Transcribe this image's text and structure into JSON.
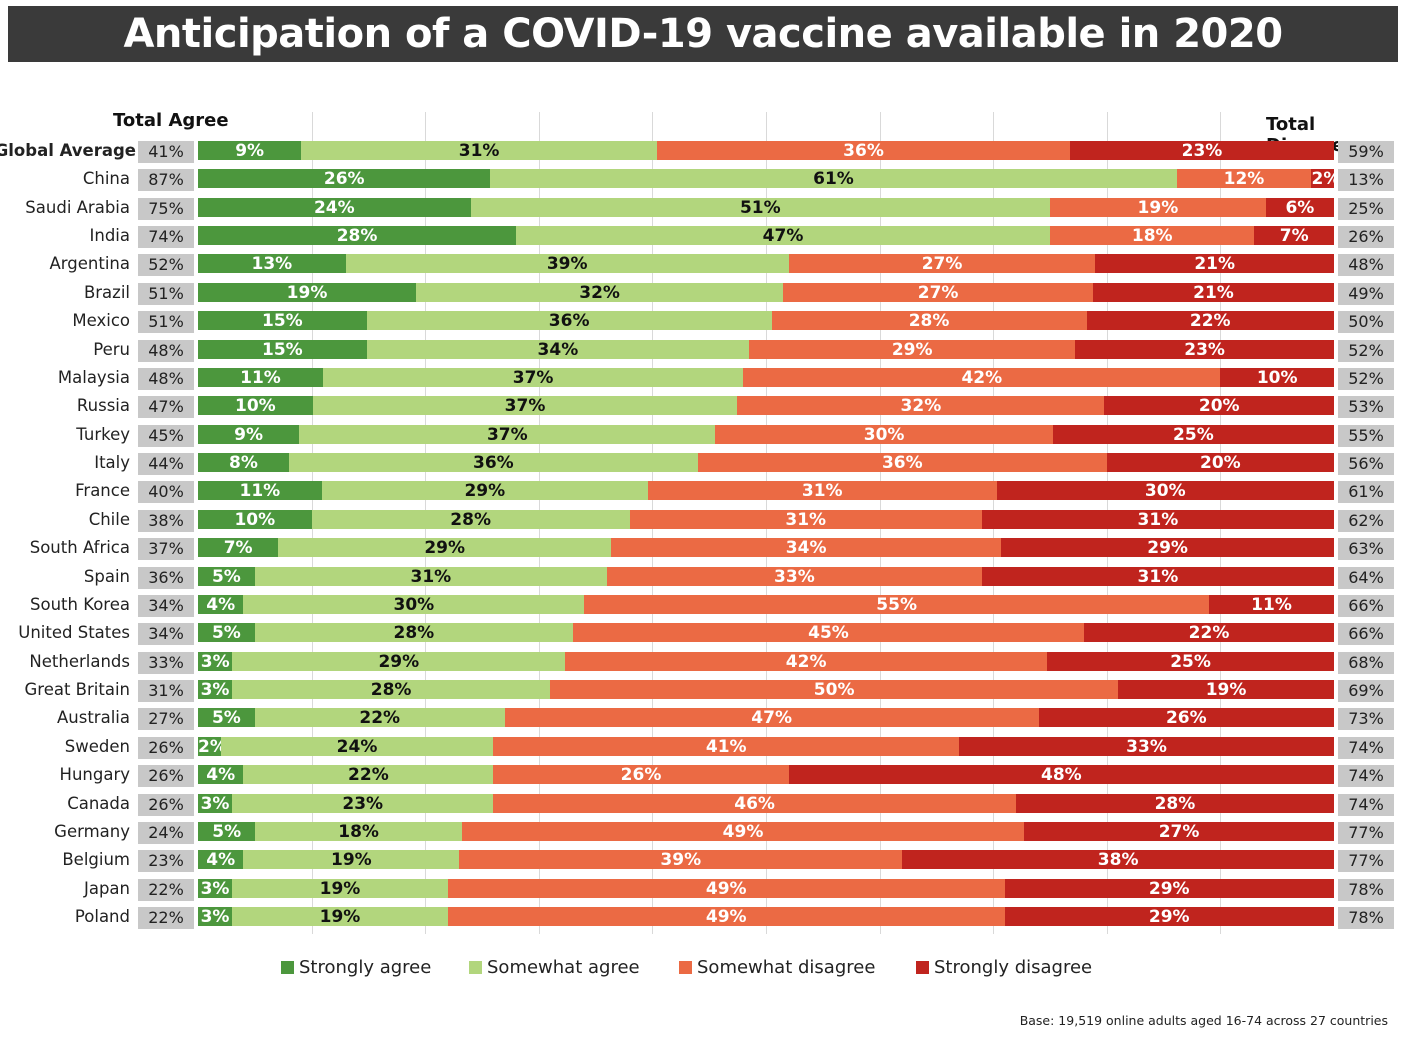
{
  "chart_data": {
    "type": "bar",
    "orientation": "horizontal",
    "stacked": true,
    "title": "Anticipation of a COVID-19 vaccine available in 2020",
    "left_header": "Total Agree",
    "right_header": "Total Disagree",
    "footnote": "Base: 19,519 online adults aged 16-74 across 27 countries",
    "legend_position": "bottom",
    "grid": true,
    "xlim": [
      0,
      100
    ],
    "series": [
      {
        "name": "Strongly agree",
        "color": "#4c973d",
        "label_color": "#ffffff"
      },
      {
        "name": "Somewhat agree",
        "color": "#b2d67d",
        "label_color": "#111111"
      },
      {
        "name": "Somewhat disagree",
        "color": "#eb6a44",
        "label_color": "#ffffff"
      },
      {
        "name": "Strongly disagree",
        "color": "#c0241e",
        "label_color": "#ffffff"
      }
    ],
    "rows": [
      {
        "category": "Global Average",
        "total_agree": "41%",
        "values": [
          9,
          31,
          36,
          23
        ],
        "total_disagree": "59%"
      },
      {
        "category": "China",
        "total_agree": "87%",
        "values": [
          26,
          61,
          12,
          2
        ],
        "total_disagree": "13%"
      },
      {
        "category": "Saudi Arabia",
        "total_agree": "75%",
        "values": [
          24,
          51,
          19,
          6
        ],
        "total_disagree": "25%"
      },
      {
        "category": "India",
        "total_agree": "74%",
        "values": [
          28,
          47,
          18,
          7
        ],
        "total_disagree": "26%"
      },
      {
        "category": "Argentina",
        "total_agree": "52%",
        "values": [
          13,
          39,
          27,
          21
        ],
        "total_disagree": "48%"
      },
      {
        "category": "Brazil",
        "total_agree": "51%",
        "values": [
          19,
          32,
          27,
          21
        ],
        "total_disagree": "49%"
      },
      {
        "category": "Mexico",
        "total_agree": "51%",
        "values": [
          15,
          36,
          28,
          22
        ],
        "total_disagree": "50%"
      },
      {
        "category": "Peru",
        "total_agree": "48%",
        "values": [
          15,
          34,
          29,
          23
        ],
        "total_disagree": "52%"
      },
      {
        "category": "Malaysia",
        "total_agree": "48%",
        "values": [
          11,
          37,
          42,
          10
        ],
        "total_disagree": "52%"
      },
      {
        "category": "Russia",
        "total_agree": "47%",
        "values": [
          10,
          37,
          32,
          20
        ],
        "total_disagree": "53%"
      },
      {
        "category": "Turkey",
        "total_agree": "45%",
        "values": [
          9,
          37,
          30,
          25
        ],
        "total_disagree": "55%"
      },
      {
        "category": "Italy",
        "total_agree": "44%",
        "values": [
          8,
          36,
          36,
          20
        ],
        "total_disagree": "56%"
      },
      {
        "category": "France",
        "total_agree": "40%",
        "values": [
          11,
          29,
          31,
          30
        ],
        "total_disagree": "61%"
      },
      {
        "category": "Chile",
        "total_agree": "38%",
        "values": [
          10,
          28,
          31,
          31
        ],
        "total_disagree": "62%"
      },
      {
        "category": "South Africa",
        "total_agree": "37%",
        "values": [
          7,
          29,
          34,
          29
        ],
        "total_disagree": "63%"
      },
      {
        "category": "Spain",
        "total_agree": "36%",
        "values": [
          5,
          31,
          33,
          31
        ],
        "total_disagree": "64%"
      },
      {
        "category": "South Korea",
        "total_agree": "34%",
        "values": [
          4,
          30,
          55,
          11
        ],
        "total_disagree": "66%"
      },
      {
        "category": "United States",
        "total_agree": "34%",
        "values": [
          5,
          28,
          45,
          22
        ],
        "total_disagree": "66%"
      },
      {
        "category": "Netherlands",
        "total_agree": "33%",
        "values": [
          3,
          29,
          42,
          25
        ],
        "total_disagree": "68%"
      },
      {
        "category": "Great Britain",
        "total_agree": "31%",
        "values": [
          3,
          28,
          50,
          19
        ],
        "total_disagree": "69%"
      },
      {
        "category": "Australia",
        "total_agree": "27%",
        "values": [
          5,
          22,
          47,
          26
        ],
        "total_disagree": "73%"
      },
      {
        "category": "Sweden",
        "total_agree": "26%",
        "values": [
          2,
          24,
          41,
          33
        ],
        "total_disagree": "74%"
      },
      {
        "category": "Hungary",
        "total_agree": "26%",
        "values": [
          4,
          22,
          26,
          48
        ],
        "total_disagree": "74%"
      },
      {
        "category": "Canada",
        "total_agree": "26%",
        "values": [
          3,
          23,
          46,
          28
        ],
        "total_disagree": "74%"
      },
      {
        "category": "Germany",
        "total_agree": "24%",
        "values": [
          5,
          18,
          49,
          27
        ],
        "total_disagree": "77%"
      },
      {
        "category": "Belgium",
        "total_agree": "23%",
        "values": [
          4,
          19,
          39,
          38
        ],
        "total_disagree": "77%"
      },
      {
        "category": "Japan",
        "total_agree": "22%",
        "values": [
          3,
          19,
          49,
          29
        ],
        "total_disagree": "78%"
      },
      {
        "category": "Poland",
        "total_agree": "22%",
        "values": [
          3,
          19,
          49,
          29
        ],
        "total_disagree": "78%"
      }
    ]
  }
}
